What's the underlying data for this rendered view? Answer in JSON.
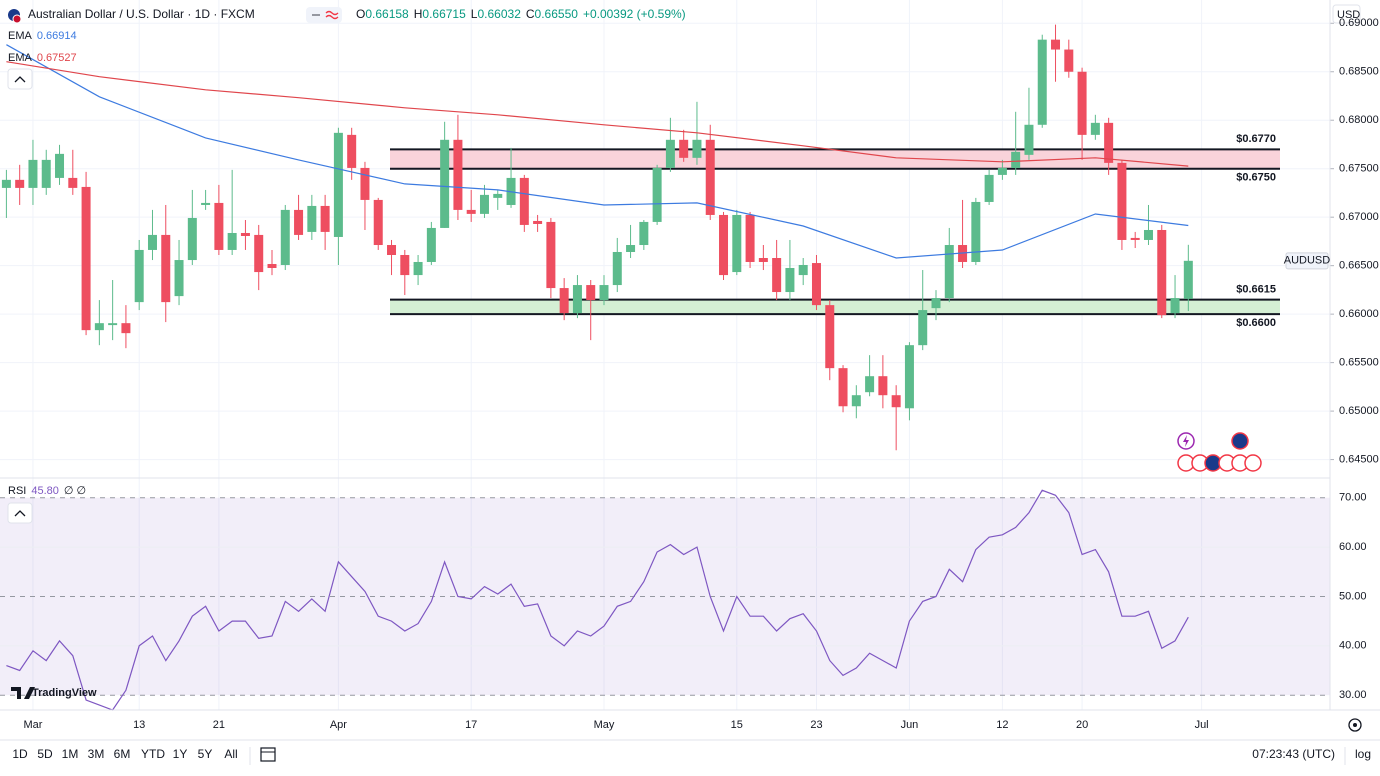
{
  "chart_data": {
    "type": "candlestick",
    "title": "Australian Dollar / U.S. Dollar · 1D · FXCM",
    "ohlc": [
      {
        "label": "O",
        "value": "0.66158"
      },
      {
        "label": "H",
        "value": "0.66715"
      },
      {
        "label": "L",
        "value": "0.66032"
      },
      {
        "label": "C",
        "value": "0.66550"
      }
    ],
    "change": "+0.00392 (+0.59%)",
    "symbol": "AUDUSD",
    "currency": "USD",
    "brand": "TradingView",
    "up_color": "#5cbb8c",
    "down_color": "#ee4e60",
    "grid": true,
    "categories": [
      null,
      null,
      "Mar",
      null,
      null,
      null,
      null,
      null,
      null,
      null,
      "13",
      null,
      null,
      null,
      null,
      null,
      "21",
      null,
      null,
      null,
      null,
      null,
      null,
      null,
      null,
      "Apr",
      null,
      null,
      null,
      null,
      null,
      null,
      null,
      null,
      null,
      "17",
      null,
      null,
      null,
      null,
      null,
      null,
      null,
      null,
      null,
      "May",
      null,
      null,
      null,
      null,
      null,
      null,
      null,
      null,
      null,
      "15",
      null,
      null,
      null,
      null,
      null,
      "23",
      null,
      null,
      null,
      null,
      null,
      null,
      "Jun",
      null,
      null,
      null,
      null,
      null,
      null,
      "12",
      null,
      null,
      null,
      null,
      null,
      "20",
      null,
      null,
      null,
      null,
      null,
      null,
      null,
      null,
      "Jul"
    ],
    "open": [
      0.67302,
      0.67385,
      0.67302,
      0.67302,
      0.67405,
      0.67405,
      0.67312,
      0.65835,
      0.65887,
      0.65907,
      0.66124,
      0.66662,
      0.66817,
      0.66186,
      0.66558,
      0.67126,
      0.67147,
      0.66662,
      0.66837,
      0.66817,
      0.66517,
      0.66507,
      0.67075,
      0.66848,
      0.67116,
      0.66796,
      0.67849,
      0.67508,
      0.67178,
      0.66713,
      0.6661,
      0.66403,
      0.66538,
      0.66889,
      0.67798,
      0.67075,
      0.67034,
      0.67199,
      0.67126,
      0.67405,
      0.66961,
      0.66951,
      0.66269,
      0.66011,
      0.663,
      0.66145,
      0.663,
      0.66641,
      0.66713,
      0.66951,
      0.67508,
      0.67798,
      0.67612,
      0.67798,
      0.67023,
      0.66434,
      0.67023,
      0.66579,
      0.66579,
      0.66228,
      0.66403,
      0.66527,
      0.66093,
      0.65443,
      0.6505,
      0.65195,
      0.6536,
      0.65164,
      0.65029,
      0.6568,
      0.66062,
      0.66166,
      0.66713,
      0.66538,
      0.67157,
      0.67436,
      0.67508,
      0.67643,
      0.67953,
      0.68831,
      0.68729,
      0.685,
      0.67849,
      0.67973,
      0.6756,
      0.66786,
      0.66765,
      0.66868,
      0.66011,
      0.66158,
      null
    ],
    "high": [
      0.67488,
      0.6754,
      0.67798,
      0.67695,
      0.67746,
      0.67695,
      0.67467,
      0.66145,
      0.66352,
      0.66093,
      0.66765,
      0.67075,
      0.67126,
      0.66765,
      0.67281,
      0.67281,
      0.67333,
      0.67488,
      0.66971,
      0.6692,
      0.66662,
      0.67126,
      0.6723,
      0.6723,
      0.6723,
      0.67922,
      0.67922,
      0.67571,
      0.67199,
      0.66765,
      0.66662,
      0.6661,
      0.66951,
      0.67984,
      0.68056,
      0.67281,
      0.67333,
      0.67281,
      0.67715,
      0.67436,
      0.67023,
      0.66992,
      0.66372,
      0.66403,
      0.66352,
      0.66403,
      0.66786,
      0.6692,
      0.66971,
      0.6754,
      0.68025,
      0.67901,
      0.6819,
      0.67953,
      0.67054,
      0.67075,
      0.67054,
      0.66713,
      0.66765,
      0.66765,
      0.66579,
      0.6661,
      0.66145,
      0.65474,
      0.65267,
      0.65577,
      0.65577,
      0.65267,
      0.65711,
      0.66455,
      0.66248,
      0.66889,
      0.67178,
      0.67199,
      0.67488,
      0.67591,
      0.68087,
      0.68335,
      0.68882,
      0.68986,
      0.68831,
      0.68542,
      0.68056,
      0.68025,
      0.67591,
      0.66848,
      0.67126,
      0.6692,
      0.66403,
      0.66715,
      null
    ],
    "low": [
      0.66992,
      0.67126,
      0.67126,
      0.6723,
      0.67333,
      0.6723,
      0.65784,
      0.6568,
      0.65732,
      0.65649,
      0.66042,
      0.66558,
      0.65918,
      0.66093,
      0.66507,
      0.67075,
      0.6661,
      0.6661,
      0.66662,
      0.66248,
      0.66403,
      0.66455,
      0.66765,
      0.66765,
      0.66662,
      0.66507,
      0.67385,
      0.66868,
      0.66662,
      0.66403,
      0.66197,
      0.663,
      0.66507,
      0.66889,
      0.66971,
      0.66951,
      0.66992,
      0.67075,
      0.67096,
      0.66848,
      0.66848,
      0.66166,
      0.65938,
      0.65959,
      0.65732,
      0.66093,
      0.66228,
      0.66579,
      0.66662,
      0.6692,
      0.67467,
      0.67571,
      0.6754,
      0.66971,
      0.66352,
      0.66403,
      0.66476,
      0.66455,
      0.66145,
      0.66145,
      0.663,
      0.66042,
      0.65319,
      0.64988,
      0.64926,
      0.65153,
      0.65029,
      0.64596,
      0.64905,
      0.65629,
      0.65938,
      0.66124,
      0.66476,
      0.66507,
      0.67126,
      0.67385,
      0.67436,
      0.67591,
      0.67922,
      0.68397,
      0.68438,
      0.67591,
      0.67798,
      0.67436,
      0.66662,
      0.66682,
      0.66713,
      0.65959,
      0.65959,
      0.66032,
      null
    ],
    "close": [
      0.67385,
      0.67302,
      0.67591,
      0.67591,
      0.67653,
      0.67302,
      0.65835,
      0.65907,
      0.65907,
      0.65804,
      0.66662,
      0.66817,
      0.66124,
      0.66558,
      0.66992,
      0.67147,
      0.66662,
      0.66837,
      0.66806,
      0.66434,
      0.66476,
      0.67075,
      0.66817,
      0.67116,
      0.66848,
      0.6787,
      0.67508,
      0.67178,
      0.66713,
      0.6661,
      0.66403,
      0.66538,
      0.66889,
      0.67798,
      0.67075,
      0.67034,
      0.6723,
      0.6724,
      0.67405,
      0.6692,
      0.6693,
      0.66269,
      0.66011,
      0.663,
      0.66145,
      0.663,
      0.66641,
      0.66713,
      0.66951,
      0.67508,
      0.67798,
      0.67612,
      0.67798,
      0.67023,
      0.66403,
      0.67023,
      0.66538,
      0.66538,
      0.66228,
      0.66476,
      0.66507,
      0.66093,
      0.65443,
      0.6505,
      0.65164,
      0.6536,
      0.65164,
      0.6504,
      0.6568,
      0.66042,
      0.66166,
      0.66713,
      0.66538,
      0.67157,
      0.67436,
      0.67508,
      0.67674,
      0.67953,
      0.68831,
      0.68729,
      0.685,
      0.67849,
      0.67973,
      0.6756,
      0.66765,
      0.66765,
      0.66868,
      0.6599,
      0.66166,
      0.6655,
      null
    ],
    "ylim": [
      0.6431,
      0.6924
    ],
    "yticks": [
      {
        "value": 0.645,
        "label": "0.64500"
      },
      {
        "value": 0.65,
        "label": "0.65000"
      },
      {
        "value": 0.655,
        "label": "0.65500"
      },
      {
        "value": 0.66,
        "label": "0.66000"
      },
      {
        "value": 0.665,
        "label": "0.66500"
      },
      {
        "value": 0.67,
        "label": "0.67000"
      },
      {
        "value": 0.675,
        "label": "0.67500"
      },
      {
        "value": 0.68,
        "label": "0.68000"
      },
      {
        "value": 0.685,
        "label": "0.68500"
      },
      {
        "value": 0.69,
        "label": "0.69000"
      }
    ],
    "emas": [
      {
        "name": "EMA",
        "legend_value": 0.66914,
        "color": "#3d7be0",
        "x": [
          0,
          7,
          15,
          22,
          30,
          37,
          45,
          52,
          60,
          67,
          75,
          82,
          89
        ],
        "values": [
          0.68779,
          0.68242,
          0.67818,
          0.67591,
          0.67343,
          0.67281,
          0.67126,
          0.67147,
          0.66909,
          0.66579,
          0.66662,
          0.67033,
          0.66914
        ]
      },
      {
        "name": "EMA",
        "legend_value": 0.67527,
        "color": "#e0464c",
        "x": [
          0,
          7,
          15,
          22,
          30,
          37,
          45,
          52,
          60,
          67,
          75,
          82,
          89
        ],
        "values": [
          0.68604,
          0.68449,
          0.68314,
          0.68232,
          0.68128,
          0.68056,
          0.67953,
          0.6787,
          0.67736,
          0.67612,
          0.67571,
          0.67612,
          0.67527
        ]
      }
    ],
    "zones": [
      {
        "top": 0.677,
        "bottom": 0.675,
        "top_label": "$0.6770",
        "bottom_label": "$0.6750",
        "color": "#f9d3da"
      },
      {
        "top": 0.6615,
        "bottom": 0.66,
        "top_label": "$0.6615",
        "bottom_label": "$0.6600",
        "color": "#d4efd4"
      }
    ],
    "rsi": {
      "name": "RSI",
      "legend_value": {
        "value": 45.8,
        "label": "45.80"
      },
      "extra": "∅ ∅",
      "color": "#7e57c2",
      "values": [
        36,
        35,
        39,
        37,
        41,
        38,
        29,
        28,
        27,
        31,
        40,
        42,
        37,
        41,
        46,
        48,
        43,
        45,
        45,
        41.5,
        42,
        49,
        47,
        49.5,
        47,
        57,
        54,
        51,
        46,
        45,
        43,
        44.5,
        49,
        57,
        50,
        49.5,
        52,
        50.5,
        52.5,
        48,
        48.5,
        42,
        40,
        43,
        42,
        44,
        48,
        49,
        53,
        59,
        60.5,
        58.5,
        60,
        50,
        43,
        50,
        46,
        46,
        43,
        45.5,
        46.5,
        43,
        37,
        34,
        35.5,
        38.5,
        37,
        35.5,
        45,
        49,
        50,
        55.5,
        53,
        59.5,
        62,
        62.5,
        64,
        67,
        71.5,
        70.5,
        67,
        58.5,
        59.5,
        55,
        46,
        46,
        47,
        39.5,
        41,
        45.8,
        null
      ],
      "ylim": [
        27,
        74
      ],
      "yticks": [
        {
          "value": 30,
          "label": "30.00"
        },
        {
          "value": 40,
          "label": "40.00"
        },
        {
          "value": 50,
          "label": "50.00"
        },
        {
          "value": 60,
          "label": "60.00"
        },
        {
          "value": 70,
          "label": "70.00"
        }
      ]
    },
    "intervals": [
      "1D",
      "5D",
      "1M",
      "3M",
      "6M",
      "YTD",
      "1Y",
      "5Y",
      "All"
    ],
    "clock": "07:23:43 (UTC)",
    "scale_mode": "log"
  }
}
